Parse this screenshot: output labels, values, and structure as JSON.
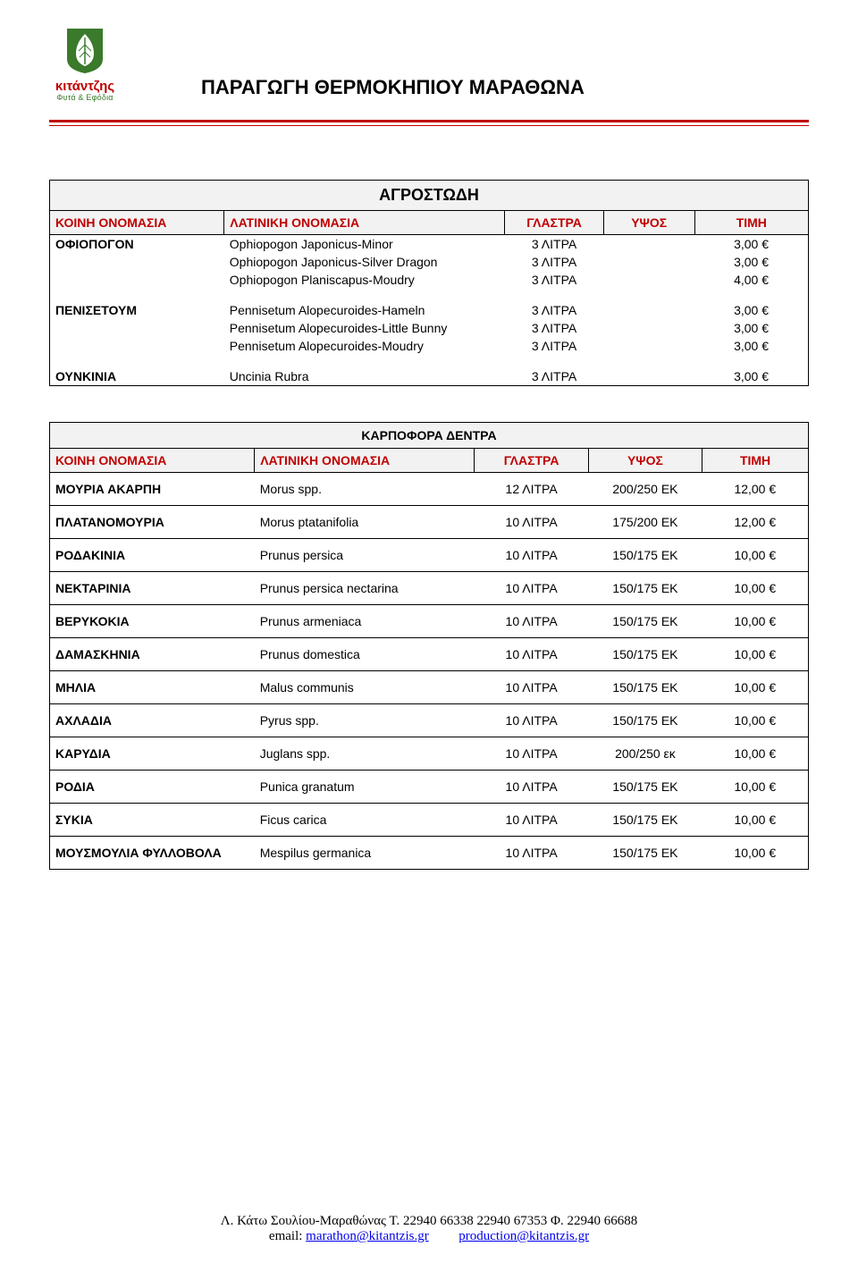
{
  "header": {
    "brand": "κιτάντζης",
    "tagline": "Φυτά & Εφόδια",
    "title": "ΠΑΡΑΓΩΓΗ ΘΕΡΜΟΚΗΠΙΟΥ ΜΑΡΑΘΩΝΑ",
    "logo_colors": {
      "shield": "#3a7a2a",
      "leaf": "#ffffff",
      "accent": "#c00000"
    }
  },
  "section1": {
    "title": "ΑΓΡΟΣΤΩΔΗ",
    "columns": [
      "ΚΟΙΝΗ ΟΝΟΜΑΣΙΑ",
      "ΛΑΤΙΝΙΚΗ ΟΝΟΜΑΣΙΑ",
      "ΓΛΑΣΤΡΑ",
      "ΥΨΟΣ",
      "ΤΙΜΗ"
    ],
    "col_widths_pct": [
      23,
      37,
      13,
      12,
      15
    ],
    "colors": {
      "header_bg": "#f2f2f2",
      "rule": "#000000",
      "col_header_text": "#c00000"
    },
    "groups": [
      {
        "name": "ΟΦΙΟΠΟΓΟΝ",
        "items": [
          {
            "latin": "Ophiopogon Japonicus-Minor",
            "pot": "3 ΛΙΤΡΑ",
            "height": "",
            "price": "3,00 €"
          },
          {
            "latin": "Ophiopogon Japonicus-Silver Dragon",
            "pot": "3 ΛΙΤΡΑ",
            "height": "",
            "price": "3,00 €"
          },
          {
            "latin": "Ophiopogon Planiscapus-Moudry",
            "pot": "3 ΛΙΤΡΑ",
            "height": "",
            "price": "4,00 €"
          }
        ]
      },
      {
        "name": "ΠΕΝΙΣΕΤΟΥΜ",
        "items": [
          {
            "latin": "Pennisetum Alopecuroides-Hameln",
            "pot": "3 ΛΙΤΡΑ",
            "height": "",
            "price": "3,00 €"
          },
          {
            "latin": "Pennisetum Alopecuroides-Little Bunny",
            "pot": "3 ΛΙΤΡΑ",
            "height": "",
            "price": "3,00 €"
          },
          {
            "latin": "Pennisetum Alopecuroides-Moudry",
            "pot": "3 ΛΙΤΡΑ",
            "height": "",
            "price": "3,00 €"
          }
        ]
      },
      {
        "name": "ΟΥΝΚΙΝΙΑ",
        "items": [
          {
            "latin": "Uncinia Rubra",
            "pot": "3 ΛΙΤΡΑ",
            "height": "",
            "price": "3,00 €"
          }
        ]
      }
    ]
  },
  "section2": {
    "title": "ΚΑΡΠΟΦΟΡΑ ΔΕΝΤΡΑ",
    "columns": [
      "ΚΟΙΝΗ ΟΝΟΜΑΣΙΑ",
      "ΛΑΤΙΝΙΚΗ ΟΝΟΜΑΣΙΑ",
      "ΓΛΑΣΤΡΑ",
      "ΥΨΟΣ",
      "ΤΙΜΗ"
    ],
    "col_widths_pct": [
      27,
      29,
      15,
      15,
      14
    ],
    "colors": {
      "header_bg": "#f2f2f2",
      "rule": "#000000",
      "col_header_text": "#c00000"
    },
    "rows": [
      {
        "name": "ΜΟΥΡΙΑ ΑΚΑΡΠΗ",
        "latin": "Morus spp.",
        "pot": "12 ΛΙΤΡΑ",
        "height": "200/250 ΕΚ",
        "price": "12,00 €"
      },
      {
        "name": "ΠΛΑΤΑΝΟΜΟΥΡΙΑ",
        "latin": "Morus ptatanifolia",
        "pot": "10 ΛΙΤΡΑ",
        "height": "175/200 ΕΚ",
        "price": "12,00 €"
      },
      {
        "name": "ΡΟΔΑΚΙΝΙΑ",
        "latin": "Prunus persica",
        "pot": "10 ΛΙΤΡΑ",
        "height": "150/175 ΕΚ",
        "price": "10,00 €"
      },
      {
        "name": "ΝΕΚΤΑΡΙΝΙΑ",
        "latin": "Prunus persica nectarina",
        "pot": "10 ΛΙΤΡΑ",
        "height": "150/175 ΕΚ",
        "price": "10,00 €"
      },
      {
        "name": "ΒΕΡΥΚΟΚΙΑ",
        "latin": "Prunus armeniaca",
        "pot": "10 ΛΙΤΡΑ",
        "height": "150/175 ΕΚ",
        "price": "10,00 €"
      },
      {
        "name": "ΔΑΜΑΣΚΗΝΙΑ",
        "latin": "Prunus domestica",
        "pot": "10 ΛΙΤΡΑ",
        "height": "150/175 ΕΚ",
        "price": "10,00 €"
      },
      {
        "name": "ΜΗΛΙΑ",
        "latin": "Malus communis",
        "pot": "10 ΛΙΤΡΑ",
        "height": "150/175 ΕΚ",
        "price": "10,00 €"
      },
      {
        "name": "ΑΧΛΑΔΙΑ",
        "latin": "Pyrus spp.",
        "pot": "10 ΛΙΤΡΑ",
        "height": "150/175 ΕΚ",
        "price": "10,00 €"
      },
      {
        "name": "ΚΑΡΥΔΙΑ",
        "latin": "Juglans spp.",
        "pot": "10 ΛΙΤΡΑ",
        "height": "200/250 εκ",
        "price": "10,00 €"
      },
      {
        "name": "ΡΟΔΙΑ",
        "latin": "Punica granatum",
        "pot": "10 ΛΙΤΡΑ",
        "height": "150/175 ΕΚ",
        "price": "10,00 €"
      },
      {
        "name": "ΣΥΚΙΑ",
        "latin": "Ficus carica",
        "pot": "10 ΛΙΤΡΑ",
        "height": "150/175 ΕΚ",
        "price": "10,00 €"
      },
      {
        "name": "ΜΟΥΣΜΟΥΛΙΑ ΦΥΛΛΟΒΟΛΑ",
        "latin": "Mespilus germanica",
        "pot": "10 ΛΙΤΡΑ",
        "height": "150/175 ΕΚ",
        "price": "10,00 €"
      }
    ]
  },
  "footer": {
    "address": "Λ. Κάτω Σουλίου-Μαραθώνας Τ. 22940 66338  22940 67353 Φ. 22940 66688",
    "email_label": "email:",
    "email1": "marathon@kitantzis.gr",
    "email2": "production@kitantzis.gr"
  }
}
